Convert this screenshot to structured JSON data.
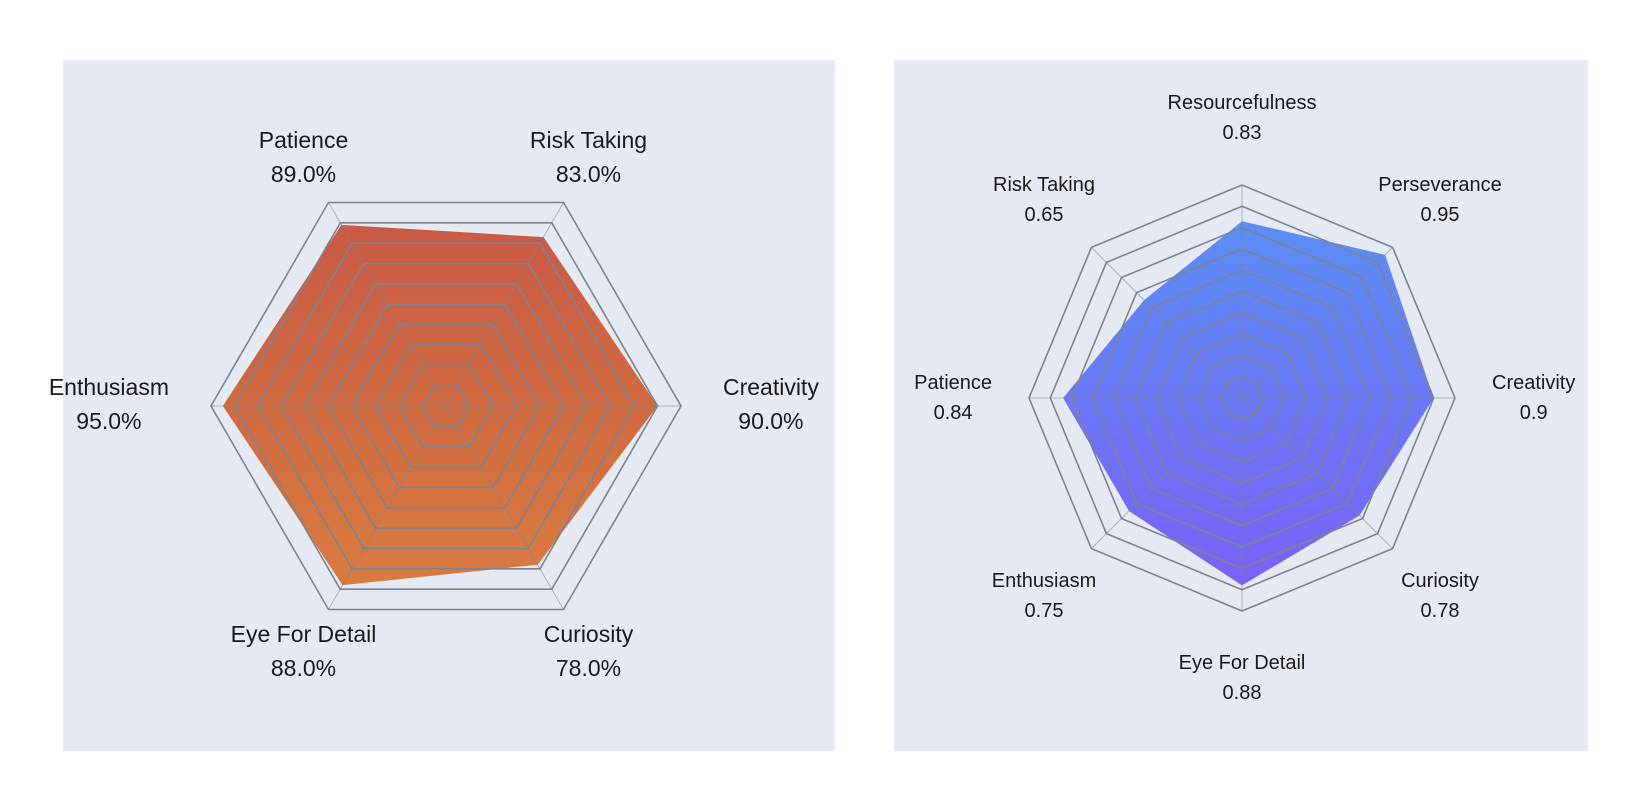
{
  "chart_data": [
    {
      "type": "radar",
      "categories": [
        "Creativity",
        "Risk Taking",
        "Patience",
        "Enthusiasm",
        "Eye For Detail",
        "Curiosity"
      ],
      "value_labels": [
        "90.0%",
        "83.0%",
        "89.0%",
        "95.0%",
        "88.0%",
        "78.0%"
      ],
      "values": [
        0.9,
        0.83,
        0.89,
        0.95,
        0.88,
        0.78
      ],
      "range": [
        0,
        1
      ],
      "rings": 10,
      "gradient": [
        "#c95a45",
        "#d87b3f"
      ]
    },
    {
      "type": "radar",
      "categories": [
        "Creativity",
        "Perseverance",
        "Resourcefulness",
        "Risk Taking",
        "Patience",
        "Enthusiasm",
        "Eye For Detail",
        "Curiosity"
      ],
      "value_labels": [
        "0.9",
        "0.95",
        "0.83",
        "0.65",
        "0.84",
        "0.75",
        "0.88",
        "0.78"
      ],
      "values": [
        0.9,
        0.95,
        0.83,
        0.65,
        0.84,
        0.75,
        0.88,
        0.78
      ],
      "range": [
        0,
        1
      ],
      "rings": 10,
      "gradient": [
        "#5b8ef5",
        "#7b61f6"
      ]
    }
  ]
}
